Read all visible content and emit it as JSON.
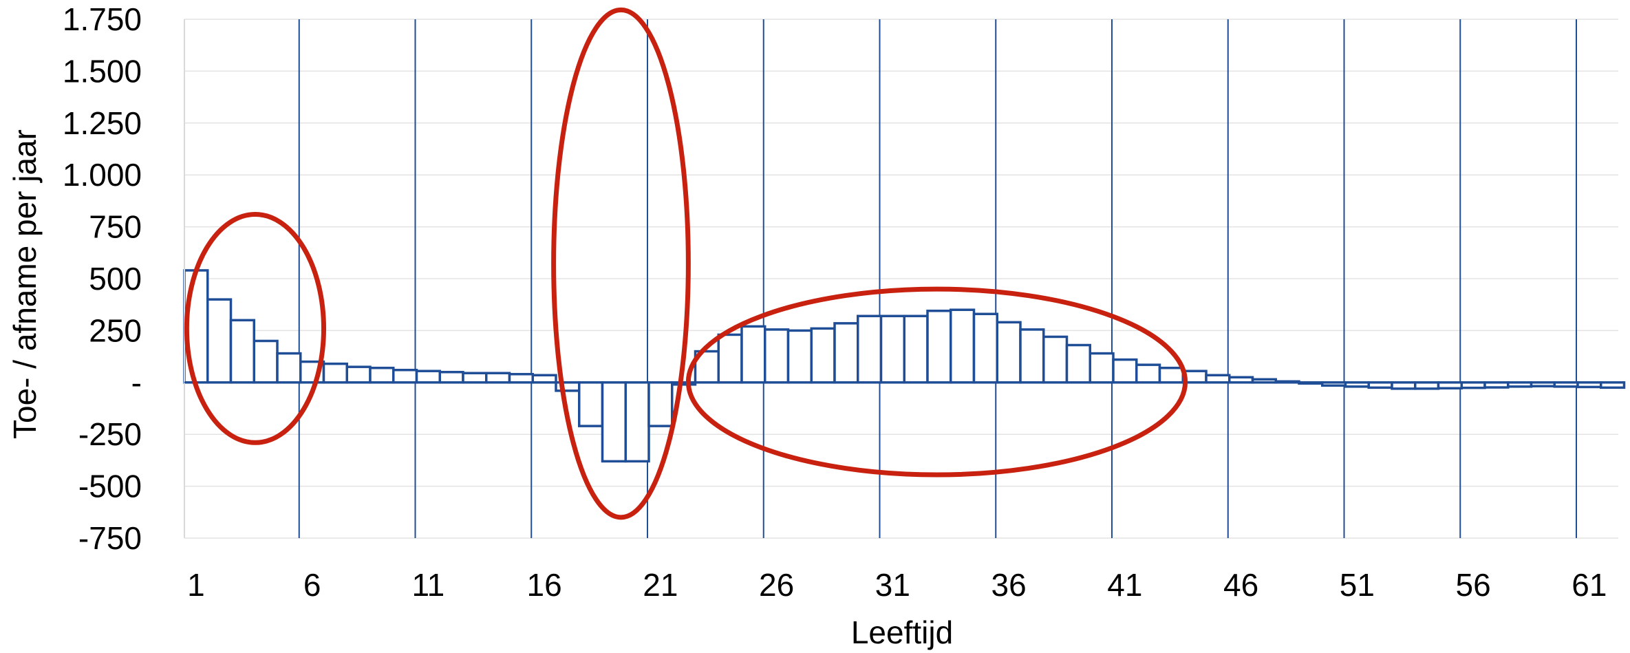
{
  "chart_data": {
    "type": "bar",
    "xlabel": "Leeftijd",
    "ylabel": "Toe- / afname per jaar",
    "ylim": [
      -750,
      1750
    ],
    "yticks": [
      {
        "value": 1750,
        "label": "1.750"
      },
      {
        "value": 1500,
        "label": "1.500"
      },
      {
        "value": 1250,
        "label": "1.250"
      },
      {
        "value": 1000,
        "label": "1.000"
      },
      {
        "value": 750,
        "label": "750"
      },
      {
        "value": 500,
        "label": "500"
      },
      {
        "value": 250,
        "label": "250"
      },
      {
        "value": 0,
        "label": "-"
      },
      {
        "value": -250,
        "label": "-250"
      },
      {
        "value": -500,
        "label": "-500"
      },
      {
        "value": -750,
        "label": "-750"
      }
    ],
    "xticks": [
      "1",
      "6",
      "11",
      "16",
      "21",
      "26",
      "31",
      "36",
      "41",
      "46",
      "51",
      "56",
      "61"
    ],
    "grid": "horizontal light gray; vertical blue every 5 ages",
    "bar_color": "#1f4e96",
    "highlight_color": "#c8210f",
    "categories": [
      1,
      2,
      3,
      4,
      5,
      6,
      7,
      8,
      9,
      10,
      11,
      12,
      13,
      14,
      15,
      16,
      17,
      18,
      19,
      20,
      21,
      22,
      23,
      24,
      25,
      26,
      27,
      28,
      29,
      30,
      31,
      32,
      33,
      34,
      35,
      36,
      37,
      38,
      39,
      40,
      41,
      42,
      43,
      44,
      45,
      46,
      47,
      48,
      49,
      50,
      51,
      52,
      53,
      54,
      55,
      56,
      57,
      58,
      59,
      60,
      61,
      62
    ],
    "values": [
      540,
      400,
      300,
      200,
      140,
      100,
      90,
      75,
      70,
      60,
      55,
      50,
      45,
      45,
      40,
      35,
      -40,
      -210,
      -380,
      -380,
      -210,
      -10,
      150,
      230,
      270,
      255,
      250,
      260,
      285,
      320,
      320,
      320,
      345,
      350,
      330,
      290,
      255,
      220,
      180,
      140,
      110,
      85,
      70,
      55,
      35,
      25,
      15,
      5,
      -5,
      -15,
      -20,
      -25,
      -30,
      -30,
      -28,
      -26,
      -24,
      -20,
      -18,
      -20,
      -22,
      -25
    ],
    "highlights": [
      {
        "from_age": 0.6,
        "to_age": 6.5,
        "y_min": -290,
        "y_max": 810
      },
      {
        "from_age": 16.4,
        "to_age": 22.2,
        "y_min": -650,
        "y_max": 1795
      },
      {
        "from_age": 22.2,
        "to_age": 43.6,
        "y_min": -445,
        "y_max": 450
      }
    ]
  }
}
